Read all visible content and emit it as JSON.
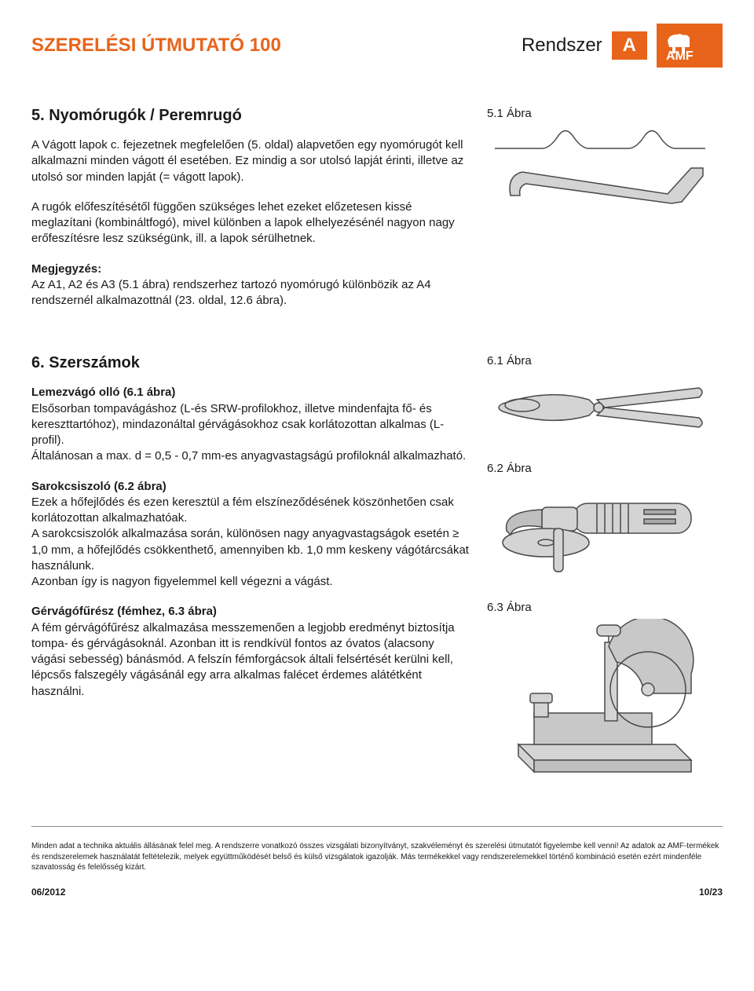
{
  "header": {
    "title_left": "SZERELÉSI ÚTMUTATÓ 100",
    "title_right": "Rendszer",
    "badge": "A",
    "logo_text": "AMF"
  },
  "colors": {
    "accent": "#e8641b",
    "text": "#1a1a1a",
    "illustration_fill": "#d4d4d4",
    "illustration_stroke": "#4a4a4a",
    "background": "#ffffff"
  },
  "section5": {
    "title": "5. Nyomórugók / Peremrugó",
    "p1": "A Vágott lapok c. fejezetnek megfelelően (5. oldal) alapvetően egy nyomórugót kell alkalmazni minden vágott él esetében. Ez mindig a sor utolsó lapját érinti, illetve az utolsó sor minden lapját (= vágott lapok).",
    "p2": "A rugók előfeszítésétől függően szükséges lehet ezeket előzetesen kissé meglazítani (kombináltfogó), mivel különben a lapok elhelyezésénél nagyon nagy erőfeszítésre lesz szükségünk, ill. a lapok sérülhetnek.",
    "note_label": "Megjegyzés:",
    "note_text": "Az A1, A2 és A3 (5.1 ábra) rendszerhez tartozó nyomórugó különbözik az A4 rendszernél alkalmazottnál (23. oldal, 12.6 ábra).",
    "fig_label": "5.1 Ábra"
  },
  "section6": {
    "title": "6. Szerszámok",
    "tool1_title": "Lemezvágó olló (6.1 ábra)",
    "tool1_text": "Elsősorban tompavágáshoz (L-és SRW-profilokhoz, illetve mindenfajta fő- és kereszttartóhoz), mindazonáltal gérvágásokhoz csak korlátozottan alkalmas (L-profil).\nÁltalánosan a max. d = 0,5 - 0,7 mm-es anyagvastagságú profiloknál alkalmazható.",
    "tool2_title": "Sarokcsiszoló (6.2 ábra)",
    "tool2_text": "Ezek a hőfejlődés és ezen keresztül a fém elszíneződésének köszönhetően csak korlátozottan alkalmazhatóak.\nA sarokcsiszolók alkalmazása során, különösen nagy anyagvastagságok esetén ≥ 1,0 mm, a hőfejlődés csökkenthető, amennyiben kb. 1,0 mm keskeny vágótárcsákat használunk.\nAzonban így is nagyon figyelemmel kell végezni a vágást.",
    "tool3_title": "Gérvágófűrész (fémhez, 6.3 ábra)",
    "tool3_text": "A fém gérvágófűrész alkalmazása messzemenően a legjobb eredményt biztosítja tompa- és gérvágásoknál. Azonban itt is rendkívül fontos az óvatos (alacsony vágási sebesség) bánásmód. A felszín fémforgácsok általi felsértését kerülni kell, lépcsős falszegély vágásánál egy arra alkalmas falécet érdemes alátétként használni.",
    "fig1_label": "6.1 Ábra",
    "fig2_label": "6.2 Ábra",
    "fig3_label": "6.3 Ábra"
  },
  "footer": {
    "disclaimer": "Minden adat a technika aktuális állásának felel meg. A rendszerre vonatkozó összes vizsgálati bizonyítványt, szakvéleményt és szerelési útmutatót figyelembe kell venni! Az adatok az AMF-termékek és rendszerelemek használatát feltételezik, melyek együttműködését belső és külső vizsgálatok igazolják. Más termékekkel vagy rendszerelemekkel történő kombináció esetén ezért mindenféle szavatosság és felelősség kizárt.",
    "date": "06/2012",
    "page": "10/23"
  }
}
